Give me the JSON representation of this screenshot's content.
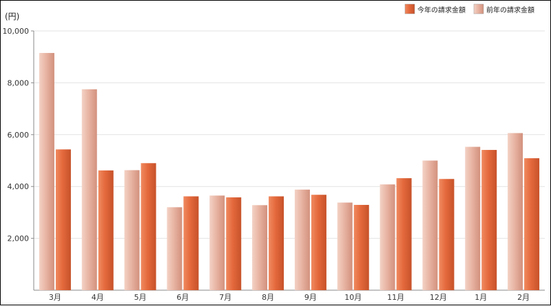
{
  "chart_data": {
    "type": "bar",
    "unit_label": "(円)",
    "categories": [
      "3月",
      "4月",
      "5月",
      "6月",
      "7月",
      "8月",
      "9月",
      "10月",
      "11月",
      "12月",
      "1月",
      "2月"
    ],
    "series": [
      {
        "name": "前年の請求金額",
        "color": "#e8b4a3",
        "values": [
          9150,
          7750,
          4630,
          3200,
          3650,
          3280,
          3880,
          3380,
          4080,
          5000,
          5530,
          6060
        ]
      },
      {
        "name": "今年の請求金額",
        "color": "#e4693c",
        "values": [
          5430,
          4620,
          4900,
          3620,
          3580,
          3620,
          3680,
          3290,
          4320,
          4290,
          5410,
          5090
        ]
      }
    ],
    "legend_order": [
      1,
      0
    ],
    "legend_position": "top-right",
    "ylim": [
      0,
      10000
    ],
    "yticks": [
      2000,
      4000,
      6000,
      8000,
      10000
    ],
    "ytick_labels": [
      "2,000",
      "4,000",
      "6,000",
      "8,000",
      "10,000"
    ],
    "grid": true
  }
}
